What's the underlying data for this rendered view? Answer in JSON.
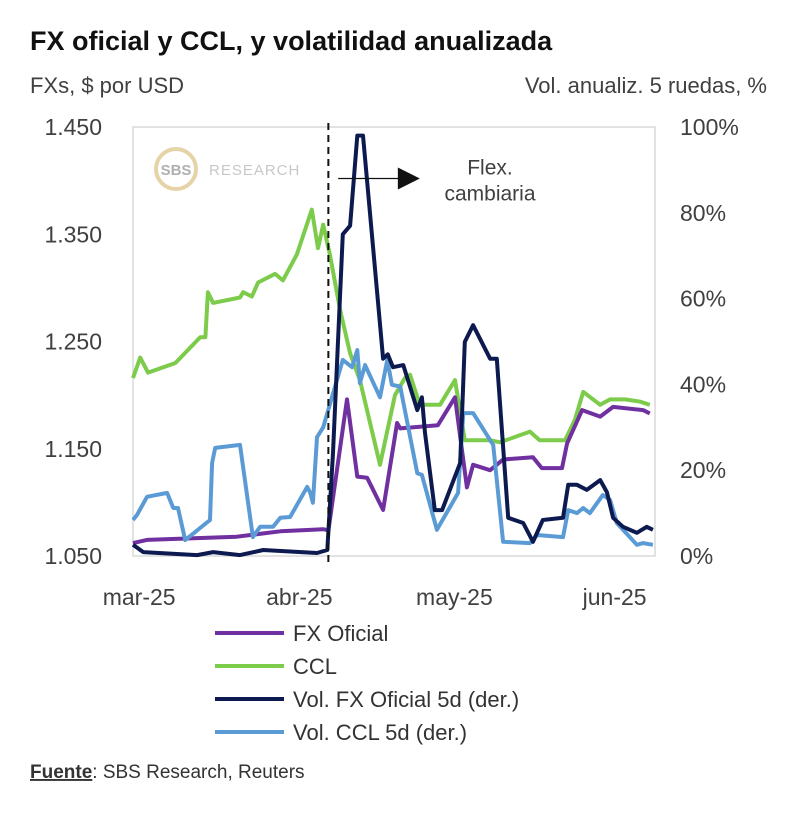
{
  "chart_data": {
    "type": "line",
    "title": "FX oficial y CCL, y volatilidad anualizada",
    "ylabel": "FXs, $ por USD",
    "y2label": "Vol. anualiz. 5 ruedas, %",
    "x_unit": "days since 1-mar-2025",
    "xlim": [
      -0.8,
      100.2
    ],
    "ylim": [
      1.05,
      1.45
    ],
    "y2lim": [
      0,
      100
    ],
    "grid": false,
    "yticks": [
      {
        "v": 1.45,
        "label": "1.450"
      },
      {
        "v": 1.35,
        "label": "1.350"
      },
      {
        "v": 1.25,
        "label": "1.250"
      },
      {
        "v": 1.15,
        "label": "1.150"
      },
      {
        "v": 1.05,
        "label": "1.050"
      }
    ],
    "y2ticks": [
      {
        "v": 100,
        "label": "100%"
      },
      {
        "v": 80,
        "label": "80%"
      },
      {
        "v": 60,
        "label": "60%"
      },
      {
        "v": 40,
        "label": "40%"
      },
      {
        "v": 20,
        "label": "20%"
      },
      {
        "v": 0,
        "label": "0%"
      }
    ],
    "xticks": [
      {
        "v": 0,
        "label": "mar-25"
      },
      {
        "v": 31,
        "label": "abr-25"
      },
      {
        "v": 61,
        "label": "may-25"
      },
      {
        "v": 92,
        "label": "jun-25"
      }
    ],
    "series": [
      {
        "name": "FX Oficial",
        "axis": "left",
        "color": "#7030a0",
        "points": [
          [
            -0.8,
            1.062
          ],
          [
            1.9,
            1.065
          ],
          [
            19.3,
            1.068
          ],
          [
            27.7,
            1.073
          ],
          [
            36.0,
            1.075
          ],
          [
            37.0,
            1.074
          ],
          [
            40.6,
            1.196
          ],
          [
            42.6,
            1.124
          ],
          [
            44.5,
            1.123
          ],
          [
            47.6,
            1.093
          ],
          [
            50.3,
            1.174
          ],
          [
            50.9,
            1.169
          ],
          [
            58.2,
            1.172
          ],
          [
            61.5,
            1.198
          ],
          [
            63.8,
            1.114
          ],
          [
            65.0,
            1.135
          ],
          [
            68.3,
            1.13
          ],
          [
            70.8,
            1.14
          ],
          [
            76.6,
            1.142
          ],
          [
            78.3,
            1.132
          ],
          [
            82.2,
            1.132
          ],
          [
            83.2,
            1.155
          ],
          [
            86.1,
            1.186
          ],
          [
            89.6,
            1.18
          ],
          [
            92.1,
            1.189
          ],
          [
            97.9,
            1.186
          ],
          [
            99.2,
            1.183
          ]
        ]
      },
      {
        "name": "CCL",
        "axis": "left",
        "color": "#7dcb4a",
        "points": [
          [
            -0.8,
            1.216
          ],
          [
            0.6,
            1.235
          ],
          [
            2.1,
            1.221
          ],
          [
            7.4,
            1.23
          ],
          [
            12.2,
            1.254
          ],
          [
            13.2,
            1.254
          ],
          [
            13.7,
            1.296
          ],
          [
            14.7,
            1.286
          ],
          [
            19.9,
            1.291
          ],
          [
            20.5,
            1.296
          ],
          [
            22.2,
            1.292
          ],
          [
            23.4,
            1.305
          ],
          [
            26.7,
            1.313
          ],
          [
            28.2,
            1.307
          ],
          [
            30.9,
            1.331
          ],
          [
            33.8,
            1.373
          ],
          [
            35.0,
            1.337
          ],
          [
            36.0,
            1.359
          ],
          [
            37.3,
            1.331
          ],
          [
            39.3,
            1.279
          ],
          [
            41.2,
            1.239
          ],
          [
            43.1,
            1.214
          ],
          [
            47.0,
            1.135
          ],
          [
            49.9,
            1.2
          ],
          [
            51.8,
            1.216
          ],
          [
            52.8,
            1.219
          ],
          [
            54.7,
            1.191
          ],
          [
            58.6,
            1.191
          ],
          [
            61.5,
            1.214
          ],
          [
            63.4,
            1.158
          ],
          [
            68.3,
            1.158
          ],
          [
            70.2,
            1.156
          ],
          [
            76.0,
            1.166
          ],
          [
            77.9,
            1.158
          ],
          [
            82.8,
            1.158
          ],
          [
            84.7,
            1.177
          ],
          [
            86.3,
            1.203
          ],
          [
            89.6,
            1.191
          ],
          [
            91.5,
            1.196
          ],
          [
            94.4,
            1.196
          ],
          [
            97.3,
            1.194
          ],
          [
            99.2,
            1.191
          ]
        ]
      },
      {
        "name": "Vol. FX Oficial 5d (der.)",
        "axis": "right",
        "color": "#0d1a4f",
        "points": [
          [
            -0.8,
            2.6
          ],
          [
            1.2,
            0.9
          ],
          [
            11.6,
            0.2
          ],
          [
            14.7,
            0.9
          ],
          [
            19.9,
            0.2
          ],
          [
            24.4,
            1.4
          ],
          [
            34.8,
            0.7
          ],
          [
            36.8,
            1.4
          ],
          [
            37.9,
            24
          ],
          [
            39.8,
            75
          ],
          [
            41.2,
            77
          ],
          [
            42.6,
            98
          ],
          [
            43.7,
            98
          ],
          [
            47.6,
            46
          ],
          [
            48.5,
            47
          ],
          [
            49.5,
            44
          ],
          [
            51.5,
            44.5
          ],
          [
            54.2,
            34
          ],
          [
            55.1,
            37
          ],
          [
            55.7,
            28.7
          ],
          [
            57.6,
            10.7
          ],
          [
            59.0,
            10.7
          ],
          [
            62.5,
            21.7
          ],
          [
            63.4,
            49.9
          ],
          [
            65.0,
            53.8
          ],
          [
            68.3,
            46
          ],
          [
            69.6,
            46
          ],
          [
            71.8,
            8.9
          ],
          [
            74.7,
            7.7
          ],
          [
            76.6,
            3.3
          ],
          [
            78.5,
            8.4
          ],
          [
            82.4,
            8.9
          ],
          [
            83.4,
            16.6
          ],
          [
            85.1,
            16.6
          ],
          [
            87.0,
            15.4
          ],
          [
            89.6,
            17.7
          ],
          [
            90.9,
            14.9
          ],
          [
            92.1,
            8.9
          ],
          [
            94.0,
            6.8
          ],
          [
            96.7,
            5.4
          ],
          [
            98.6,
            6.8
          ],
          [
            99.8,
            6.1
          ]
        ]
      },
      {
        "name": "Vol. CCL 5d (der.)",
        "axis": "right",
        "color": "#5b9bd5",
        "points": [
          [
            -0.8,
            8.4
          ],
          [
            0,
            9.6
          ],
          [
            1.9,
            13.8
          ],
          [
            5.8,
            14.7
          ],
          [
            7.0,
            11.2
          ],
          [
            7.9,
            11.2
          ],
          [
            9.3,
            3.7
          ],
          [
            14.1,
            8.4
          ],
          [
            14.5,
            21.7
          ],
          [
            15.1,
            25.2
          ],
          [
            19.9,
            25.9
          ],
          [
            22.4,
            4.4
          ],
          [
            23.8,
            6.8
          ],
          [
            26.3,
            6.8
          ],
          [
            27.7,
            8.9
          ],
          [
            29.6,
            9.1
          ],
          [
            32.9,
            16.1
          ],
          [
            33.5,
            14.7
          ],
          [
            34.0,
            12.4
          ],
          [
            34.8,
            27.7
          ],
          [
            36.0,
            30
          ],
          [
            39.8,
            45.7
          ],
          [
            41.6,
            44
          ],
          [
            42.6,
            48
          ],
          [
            43.1,
            40.3
          ],
          [
            44.1,
            44.5
          ],
          [
            47.0,
            37
          ],
          [
            48.4,
            45.7
          ],
          [
            49.3,
            39.9
          ],
          [
            50.9,
            39.5
          ],
          [
            54.2,
            19.3
          ],
          [
            55.1,
            18.9
          ],
          [
            58.0,
            6.1
          ],
          [
            62.1,
            14.7
          ],
          [
            63.1,
            33.3
          ],
          [
            65.0,
            33.3
          ],
          [
            68.9,
            25.9
          ],
          [
            70.8,
            3.3
          ],
          [
            76.0,
            3.0
          ],
          [
            77.4,
            4.9
          ],
          [
            82.4,
            4.4
          ],
          [
            83.4,
            10.7
          ],
          [
            85.1,
            10.0
          ],
          [
            86.3,
            11.2
          ],
          [
            87.6,
            10.0
          ],
          [
            90.1,
            14.2
          ],
          [
            91.5,
            13.1
          ],
          [
            92.8,
            7.7
          ],
          [
            96.7,
            2.6
          ],
          [
            97.9,
            3.0
          ],
          [
            99.8,
            2.6
          ]
        ]
      }
    ],
    "annotations": {
      "event_day": 37,
      "event_label": "Flex. cambiaria",
      "arrow_from_day": 38.9,
      "arrow_to_day": 54.7,
      "arrow_level_pct": 88
    },
    "legend_placement": "bottom"
  },
  "watermark": {
    "logo": "SBS",
    "text": "RESEARCH"
  },
  "source": {
    "label": "Fuente",
    "text": ": SBS Research, Reuters"
  }
}
